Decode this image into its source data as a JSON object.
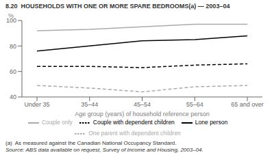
{
  "chart_data": {
    "type": "line",
    "title": "8.20  HOUSEHOLDS WITH ONE OR MORE SPARE BEDROOMS(a) — 2003–04",
    "xlabel": "Age group (years) of household reference person",
    "ylabel": "%",
    "categories": [
      "Under 35",
      "35–44",
      "45–54",
      "55–64",
      "65 and over"
    ],
    "series": [
      {
        "name": "Lone person",
        "color": "#000000",
        "line_style": "solid",
        "values": [
          76,
          80,
          84,
          85,
          88
        ]
      },
      {
        "name": "Couple only",
        "color": "#aaaaaa",
        "line_style": "solid",
        "values": [
          92,
          93,
          95,
          97,
          97
        ]
      },
      {
        "name": "Couple with dependent children",
        "color": "#000000",
        "line_style": "dashed",
        "values": [
          64,
          64,
          63,
          65,
          66
        ]
      },
      {
        "name": "One parent with dependent children",
        "color": "#aaaaaa",
        "line_style": "dashed",
        "values": [
          49,
          47,
          44,
          48,
          49
        ]
      }
    ],
    "ylim": [
      40,
      100
    ],
    "yticks": [
      40,
      60,
      80,
      100
    ],
    "grid": false,
    "legend": "bottom",
    "footnotes": [
      "(a)  As measured against the Canadian National Occupancy Standard.",
      "Source: ABS data available on request, Survey of Income and Housing, 2003–04."
    ]
  }
}
